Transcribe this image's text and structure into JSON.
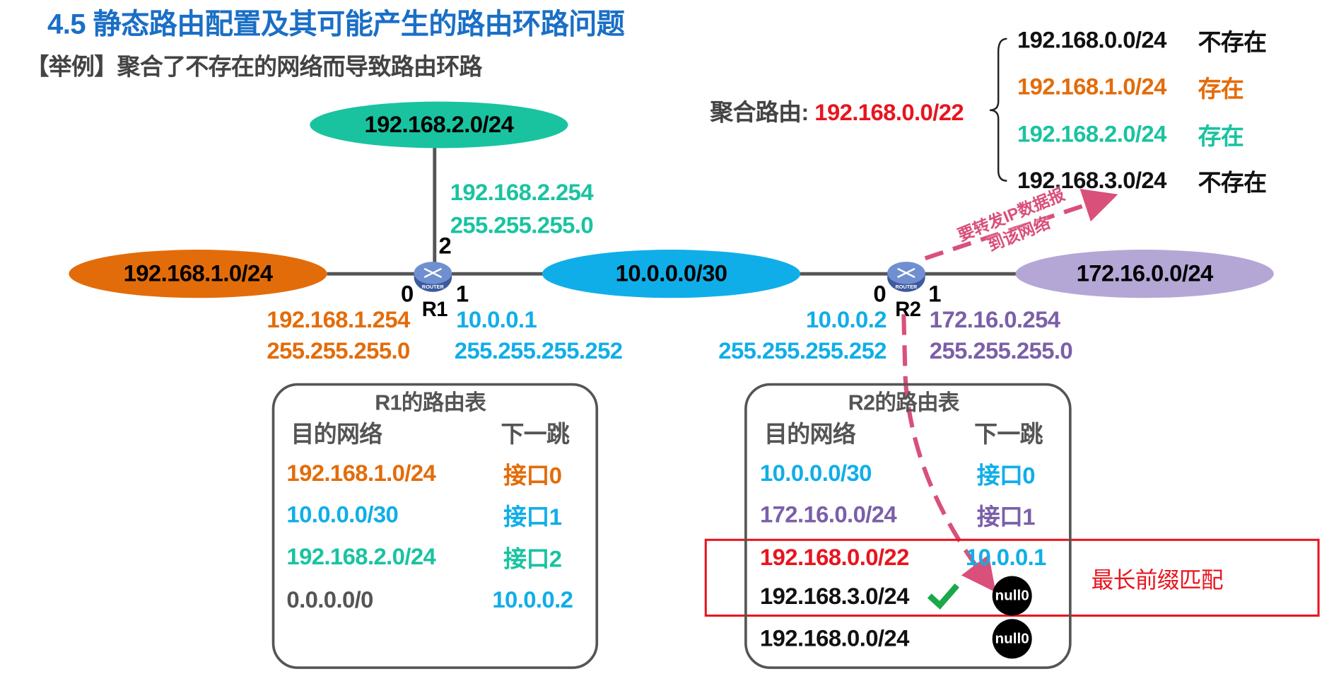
{
  "title": "4.5  静态路由配置及其可能产生的路由环路问题",
  "subtitle": "【举例】聚合了不存在的网络而导致路由环路",
  "colors": {
    "title": "#1a6fc6",
    "orange": "#e36c0a",
    "teal": "#19c3a0",
    "blue": "#10aee8",
    "purple": "#7b5fa8",
    "red": "#e8141e",
    "pink": "#d9507a",
    "green": "#1aa84a"
  },
  "networks": {
    "top": "192.168.2.0/24",
    "left": "192.168.1.0/24",
    "middle": "10.0.0.0/30",
    "right": "172.16.0.0/24"
  },
  "r1": {
    "name": "R1",
    "port0": "0",
    "port1": "1",
    "port2": "2",
    "if2_ip": "192.168.2.254",
    "if2_mask": "255.255.255.0",
    "if0_ip": "192.168.1.254",
    "if0_mask": "255.255.255.0",
    "if1_ip": "10.0.0.1",
    "if1_mask": "255.255.255.252"
  },
  "r2": {
    "name": "R2",
    "port0": "0",
    "port1": "1",
    "if0_ip": "10.0.0.2",
    "if0_mask": "255.255.255.252",
    "if1_ip": "172.16.0.254",
    "if1_mask": "255.255.255.0"
  },
  "router_label": "ROUTER",
  "aggregate": {
    "label": "聚合路由: ",
    "route": "192.168.0.0/22",
    "items": [
      {
        "net": "192.168.0.0/24",
        "status": "不存在"
      },
      {
        "net": "192.168.1.0/24",
        "status": "存在"
      },
      {
        "net": "192.168.2.0/24",
        "status": "存在"
      },
      {
        "net": "192.168.3.0/24",
        "status": "不存在"
      }
    ]
  },
  "arrow_text": {
    "line1": "要转发IP数据报",
    "line2": "到该网络"
  },
  "r1_table": {
    "title": "R1的路由表",
    "col_dest": "目的网络",
    "col_next": "下一跳",
    "rows": [
      {
        "dest": "192.168.1.0/24",
        "next": "接口0"
      },
      {
        "dest": "10.0.0.0/30",
        "next": "接口1"
      },
      {
        "dest": "192.168.2.0/24",
        "next": "接口2"
      },
      {
        "dest": "0.0.0.0/0",
        "next": "10.0.0.2"
      }
    ]
  },
  "r2_table": {
    "title": "R2的路由表",
    "col_dest": "目的网络",
    "col_next": "下一跳",
    "rows": [
      {
        "dest": "10.0.0.0/30",
        "next": "接口0"
      },
      {
        "dest": "172.16.0.0/24",
        "next": "接口1"
      },
      {
        "dest": "192.168.0.0/22",
        "next": "10.0.0.1"
      },
      {
        "dest": "192.168.3.0/24",
        "next": "null0"
      },
      {
        "dest": "192.168.0.0/24",
        "next": "null0"
      }
    ]
  },
  "longest_match": "最长前缀匹配"
}
